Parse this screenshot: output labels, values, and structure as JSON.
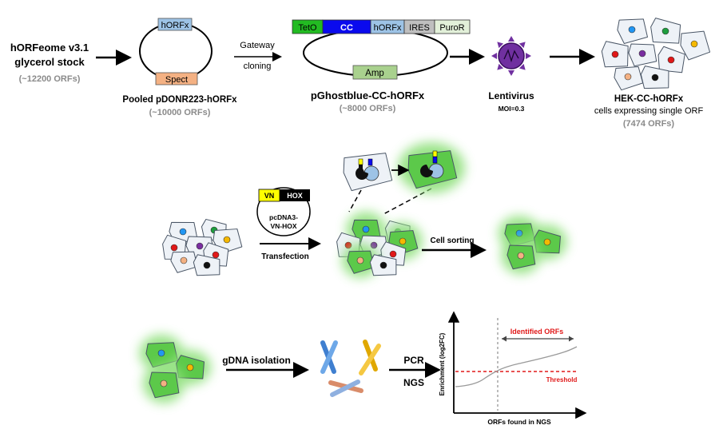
{
  "row1": {
    "stock_title_1": "hORFeome v3.1",
    "stock_title_2": "glycerol stock",
    "stock_count": "(~12200 ORFs)",
    "donor_insert_label": "hORFx",
    "donor_marker_label": "Spect",
    "donor_title": "Pooled pDONR223-hORFx",
    "donor_count": "(~10000 ORFs)",
    "gateway_label_1": "Gateway",
    "gateway_label_2": "cloning",
    "cassette": [
      {
        "label": "TetO",
        "color": "#22bb22",
        "text_color": "#000000"
      },
      {
        "label": "CC",
        "color": "#0a0aee",
        "text_color": "#ffffff"
      },
      {
        "label": "hORFx",
        "color": "#9dc3e6",
        "text_color": "#000000"
      },
      {
        "label": "IRES",
        "color": "#bfbfbf",
        "text_color": "#000000"
      },
      {
        "label": "PuroR",
        "color": "#e2f0d9",
        "text_color": "#000000"
      }
    ],
    "amp_label": "Amp",
    "dest_title": "pGhostblue-CC-hORFx",
    "dest_count": "(~8000 ORFs)",
    "virus_title": "Lentivirus",
    "virus_moi": "MOI=0.3",
    "cells_title": "HEK-CC-hORFx",
    "cells_subtitle": "cells expressing single ORF",
    "cells_count": "(7474 ORFs)"
  },
  "row2": {
    "plasmid_vn": "VN",
    "plasmid_hox": "HOX",
    "plasmid_name_1": "pcDNA3-",
    "plasmid_name_2": "VN-HOX",
    "transfection_label": "Transfection",
    "sorting_label": "Cell sorting"
  },
  "row3": {
    "gdna_label": "gDNA isolation",
    "pcr_label": "PCR",
    "ngs_label": "NGS"
  },
  "plot": {
    "ylabel": "Enrichment (log2FC)",
    "xlabel": "ORFs found in NGS",
    "identified_label": "Identified ORFs",
    "threshold_label": "Threshold"
  },
  "colors": {
    "nucleus_blue": "#2196f3",
    "nucleus_green": "#1e9e3e",
    "nucleus_yellow": "#f5b800",
    "nucleus_red": "#e01818",
    "nucleus_purple": "#7a2ea0",
    "nucleus_peach": "#f4b183",
    "nucleus_black": "#111111",
    "fluorescent_cell": "#5cc94a",
    "glow": "#8ee07a",
    "cell_fill": "#eef2f7",
    "virus": "#7030a0",
    "threshold": "#e01818"
  }
}
